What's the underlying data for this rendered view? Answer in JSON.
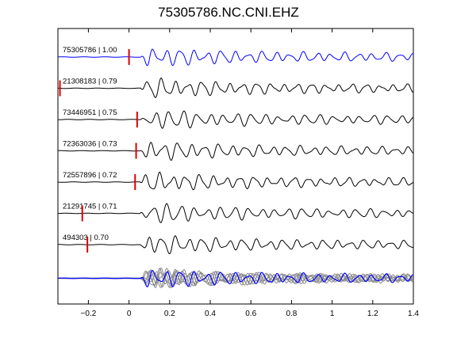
{
  "chart_data": {
    "type": "line",
    "title": "75305786.NC.CNI.EHZ",
    "xlabel": "",
    "ylabel": "",
    "xlim": [
      -0.35,
      1.4
    ],
    "xticks": [
      -0.2,
      0,
      0.2,
      0.4,
      0.6,
      0.8,
      1,
      1.2,
      1.4
    ],
    "xtick_labels": [
      "−0.2",
      "0",
      "0.2",
      "0.4",
      "0.6",
      "0.8",
      "1",
      "1.2",
      "1.4"
    ],
    "grid": false,
    "colors": {
      "reference": "#0000ff",
      "trace": "#000000",
      "pick": "#dd0000",
      "stack_overlay": "#888888"
    },
    "traces": [
      {
        "label": "75305786 | 1.00",
        "pick_time": 0.0,
        "color": "reference"
      },
      {
        "label": "21308183 | 0.79",
        "pick_time": -0.34,
        "color": "trace"
      },
      {
        "label": "73446951 | 0.75",
        "pick_time": 0.04,
        "color": "trace"
      },
      {
        "label": "72363036 | 0.73",
        "pick_time": 0.035,
        "color": "trace"
      },
      {
        "label": "72557896 | 0.72",
        "pick_time": 0.03,
        "color": "trace"
      },
      {
        "label": "21291745 | 0.71",
        "pick_time": -0.23,
        "color": "trace"
      },
      {
        "label": "494303 | 0.70",
        "pick_time": -0.205,
        "color": "trace"
      }
    ],
    "stack": {
      "label": "",
      "description_visible": false
    }
  }
}
